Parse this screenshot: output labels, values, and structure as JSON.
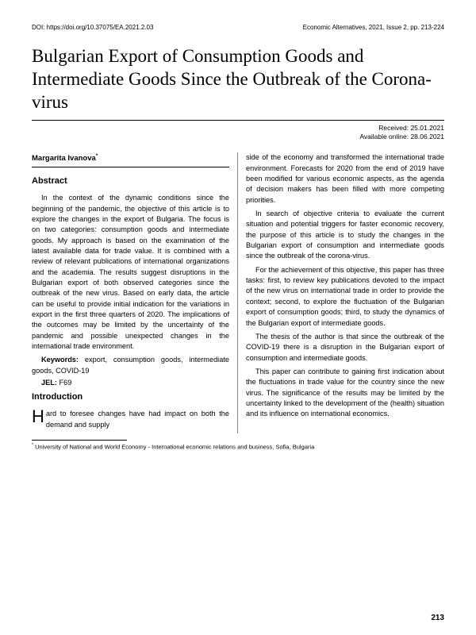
{
  "header": {
    "doi": "DOI: https://doi.org/10.37075/EA.2021.2.03",
    "journal": "Economic Alternatives, 2021, Issue 2, pp. 213-224"
  },
  "title": "Bulgarian Export of Consumption Goods and Intermediate Goods Since the Outbreak of the Corona-virus",
  "dates": {
    "received": "Received: 25.01.2021",
    "online": "Available online: 28.06.2021"
  },
  "author": "Margarita Ivanova",
  "author_mark": "*",
  "sections": {
    "abstract_h": "Abstract",
    "intro_h": "Introduction"
  },
  "abstract": {
    "p1": "In the context of the dynamic conditions since the beginning of the pandemic, the objective of this article is to explore the changes in the export of Bulgaria. The focus is on two categories: consumption goods and intermediate goods. My approach is based on the examination of the latest available data for trade value. It is combined with a review of relevant publications of international organizations and the academia. The results suggest disruptions in the Bulgarian export of both observed categories since the outbreak of the new virus. Based on early data, the article can be useful to provide initial indication for the variations in export in the first three quarters of 2020. The implications of the outcomes may be limited by the uncertainty of the pandemic and possible unexpected changes in the international trade environment.",
    "keywords_label": "Keywords:",
    "keywords": " export, consumption goods, intermediate goods, COVID-19",
    "jel_label": "JEL:",
    "jel": " F69"
  },
  "intro": {
    "dropcap": "H",
    "p1_rest": "ard to foresee changes have had impact on both the demand and supply",
    "p2": "side of the economy and transformed the international trade environment. Forecasts for 2020 from the end of 2019 have been modified for various economic aspects, as the agenda of decision makers has been filled with more competing priorities.",
    "p3": "In search of objective criteria to evaluate the current situation and potential triggers for faster economic recovery, the purpose of this article is to study the changes in the Bulgarian export of consumption and intermediate goods since the outbreak of the corona-virus.",
    "p4": "For the achievement of this objective, this paper has three tasks: first, to review key publications devoted to the impact of the new virus on international trade in order to provide the context; second, to explore the fluctuation of the Bulgarian export of consumption goods; third, to study the dynamics of the Bulgarian export of intermediate goods.",
    "p5": "The thesis of the author is that since the outbreak of the COVID-19 there is a disruption in the Bulgarian export of consumption and intermediate goods.",
    "p6": "This paper can contribute to gaining first indication about the fluctuations in trade value for the country since the new virus. The significance of the results may be limited by the uncertainty linked to the development of the (health) situation and its influence on international economics."
  },
  "footnote": {
    "mark": "*",
    "text": " University of National and World Economy - International economic relations and business, Sofia, Bulgaria"
  },
  "page_number": "213"
}
